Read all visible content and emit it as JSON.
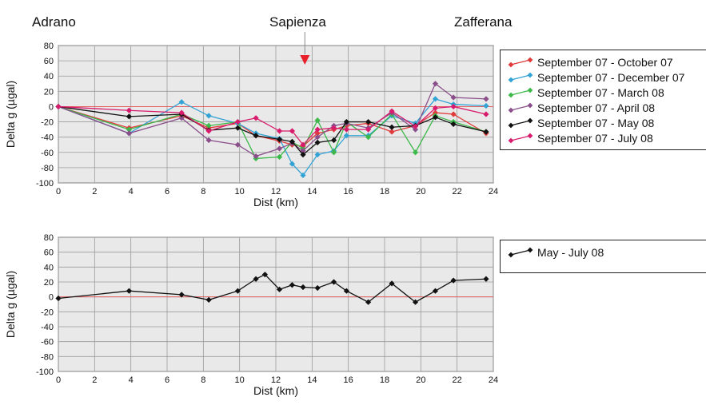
{
  "locations": [
    "Adrano",
    "Sapienza",
    "Zafferana"
  ],
  "colors": {
    "zero_line": "#e46060",
    "marker": "#e8202a",
    "plot_bg": "#e9e9e9",
    "grid": "#9a9a9a"
  },
  "chart_data": [
    {
      "type": "line",
      "xlabel": "Dist (km)",
      "ylabel": "Delta g (µgal)",
      "xlim": [
        0,
        24
      ],
      "ylim": [
        -100,
        80
      ],
      "xticks": [
        "0",
        "2",
        "4",
        "6",
        "8",
        "10",
        "12",
        "14",
        "16",
        "18",
        "20",
        "22",
        "24"
      ],
      "yticks": [
        "80",
        "60",
        "40",
        "20",
        "0",
        "-20",
        "-40",
        "-60",
        "-80",
        "-100"
      ],
      "grid": true,
      "legend_position": "right",
      "annotation": {
        "label": "Sapienza",
        "x": 13.6,
        "marker": "down-triangle"
      },
      "series": [
        {
          "name": "September 07 - October 07",
          "color": "#e03a3a",
          "x": [
            0,
            3.9,
            6.8,
            8.3,
            9.9,
            10.9,
            12.2,
            12.9,
            13.5,
            14.3,
            15.2,
            15.9,
            17.1,
            18.4,
            19.7,
            20.8,
            21.8,
            23.6
          ],
          "y": [
            0,
            -28,
            -12,
            -28,
            -22,
            -38,
            -45,
            -50,
            -52,
            -35,
            -30,
            -25,
            -22,
            -33,
            -25,
            -8,
            -10,
            -35
          ]
        },
        {
          "name": "September 07 - December 07",
          "color": "#33a3d6",
          "x": [
            0,
            3.9,
            6.8,
            8.3,
            9.9,
            10.9,
            12.2,
            12.9,
            13.5,
            14.3,
            15.2,
            15.9,
            17.1,
            18.4,
            19.7,
            20.8,
            21.8,
            23.6
          ],
          "y": [
            0,
            -35,
            6,
            -12,
            -22,
            -35,
            -42,
            -75,
            -90,
            -63,
            -58,
            -38,
            -38,
            -12,
            -22,
            10,
            3,
            1
          ]
        },
        {
          "name": "September 07 - March 08",
          "color": "#3cb94a",
          "x": [
            0,
            3.9,
            6.8,
            8.3,
            9.9,
            10.9,
            12.2,
            12.9,
            13.5,
            14.3,
            15.2,
            15.9,
            17.1,
            18.4,
            19.7,
            20.8,
            21.8,
            23.6
          ],
          "y": [
            0,
            -30,
            -10,
            -25,
            -20,
            -68,
            -66,
            -46,
            -55,
            -18,
            -60,
            -20,
            -40,
            -10,
            -60,
            -12,
            -20,
            -33
          ]
        },
        {
          "name": "September 07 - April 08",
          "color": "#8a4f8a",
          "x": [
            0,
            3.9,
            6.8,
            8.3,
            9.9,
            10.9,
            12.2,
            12.9,
            13.5,
            14.3,
            15.2,
            15.9,
            17.1,
            18.4,
            19.7,
            20.8,
            21.8,
            23.6
          ],
          "y": [
            0,
            -35,
            -15,
            -44,
            -50,
            -65,
            -55,
            -48,
            -58,
            -40,
            -25,
            -22,
            -28,
            -8,
            -30,
            30,
            12,
            10
          ]
        },
        {
          "name": "September 07 - May 08",
          "color": "#111111",
          "x": [
            0,
            3.9,
            6.8,
            8.3,
            9.9,
            10.9,
            12.2,
            12.9,
            13.5,
            14.3,
            15.2,
            15.9,
            17.1,
            18.4,
            19.7,
            20.8,
            21.8,
            23.6
          ],
          "y": [
            0,
            -13,
            -10,
            -31,
            -28,
            -38,
            -43,
            -46,
            -63,
            -47,
            -44,
            -20,
            -20,
            -27,
            -25,
            -14,
            -23,
            -33
          ]
        },
        {
          "name": "September 07 - July 08",
          "color": "#d81b6c",
          "x": [
            0,
            3.9,
            6.8,
            8.3,
            9.9,
            10.9,
            12.2,
            12.9,
            13.5,
            14.3,
            15.2,
            15.9,
            17.1,
            18.4,
            19.7,
            20.8,
            21.8,
            23.6
          ],
          "y": [
            0,
            -5,
            -8,
            -32,
            -20,
            -15,
            -32,
            -32,
            -50,
            -30,
            -28,
            -30,
            -30,
            -6,
            -26,
            -2,
            0,
            -10
          ]
        }
      ]
    },
    {
      "type": "line",
      "xlabel": "Dist (km)",
      "ylabel": "Delta g (µgal)",
      "xlim": [
        0,
        24
      ],
      "ylim": [
        -100,
        80
      ],
      "xticks": [
        "0",
        "2",
        "4",
        "6",
        "8",
        "10",
        "12",
        "14",
        "16",
        "18",
        "20",
        "22",
        "24"
      ],
      "yticks": [
        "80",
        "60",
        "40",
        "20",
        "0",
        "-20",
        "-40",
        "-60",
        "-80",
        "-100"
      ],
      "grid": true,
      "legend_position": "right",
      "series": [
        {
          "name": "May - July 08",
          "color": "#111111",
          "x": [
            0,
            3.9,
            6.8,
            8.3,
            9.9,
            10.9,
            11.4,
            12.2,
            12.9,
            13.5,
            14.3,
            15.2,
            15.9,
            17.1,
            18.4,
            19.7,
            20.8,
            21.8,
            23.6
          ],
          "y": [
            -2,
            8,
            3,
            -4,
            8,
            24,
            30,
            10,
            16,
            13,
            12,
            20,
            8,
            -7,
            18,
            -7,
            8,
            22,
            24
          ]
        }
      ]
    }
  ]
}
